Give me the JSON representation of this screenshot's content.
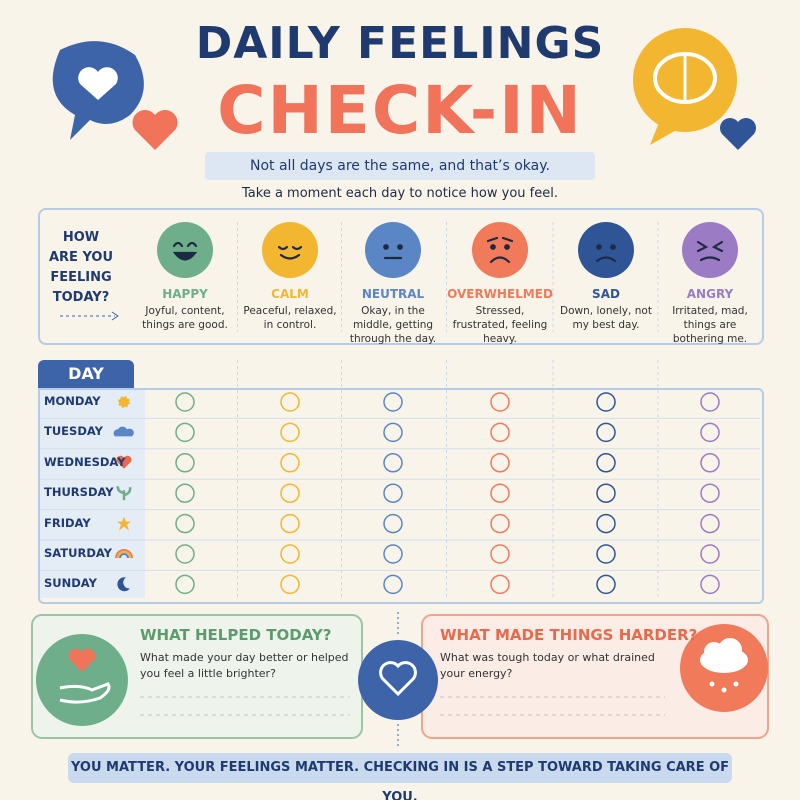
{
  "header": {
    "title_line1": "DAILY FEELINGS",
    "title_line2": "CHECK-IN",
    "subtitle": "Not all days are the same, and that’s okay.",
    "instruction": "Take a moment each day to notice how you feel."
  },
  "prompt": {
    "lines": [
      "HOW",
      "ARE YOU",
      "FEELING",
      "TODAY?"
    ]
  },
  "feelings": [
    {
      "name": "HAPPY",
      "description": "Joyful, content, things are good.",
      "color": "#6fae8a"
    },
    {
      "name": "CALM",
      "description": "Peaceful, relaxed, in control.",
      "color": "#f2b631"
    },
    {
      "name": "NEUTRAL",
      "description": "Okay, in the middle, getting through the day.",
      "color": "#5b86c5"
    },
    {
      "name": "OVERWHELMED",
      "description": "Stressed, frustrated, feeling heavy.",
      "color": "#f07a5a"
    },
    {
      "name": "SAD",
      "description": "Down, lonely, not my best day.",
      "color": "#2f5597"
    },
    {
      "name": "ANGRY",
      "description": "Irritated, mad, things are bothering me.",
      "color": "#9b7cc4"
    }
  ],
  "table": {
    "header": "DAY",
    "days": [
      "MONDAY",
      "TUESDAY",
      "WEDNESDAY",
      "THURSDAY",
      "FRIDAY",
      "SATURDAY",
      "SUNDAY"
    ]
  },
  "helped": {
    "title": "WHAT HELPED TODAY?",
    "prompt": "What made your day better or helped you feel a little brighter?"
  },
  "harder": {
    "title": "WHAT MADE THINGS HARDER?",
    "prompt": "What was tough today or what drained your energy?"
  },
  "footer": {
    "text": "YOU MATTER. YOUR FEELINGS MATTER. CHECKING IN IS A STEP TOWARD TAKING CARE OF YOU."
  }
}
